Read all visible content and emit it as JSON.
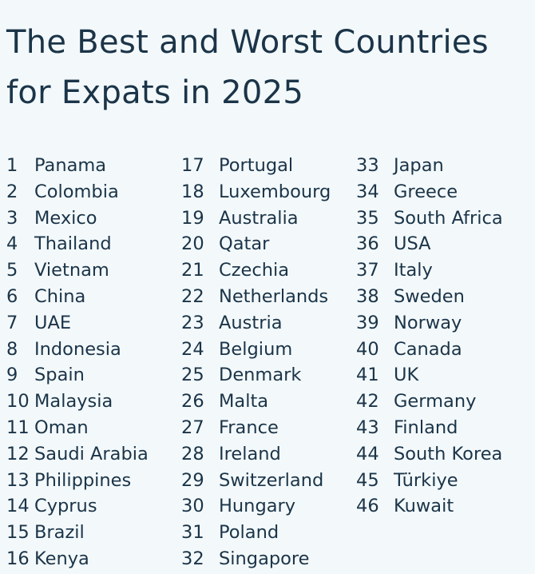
{
  "title": {
    "line1": "The Best and Worst Countries",
    "line2": "for Expats in 2025"
  },
  "columns": [
    [
      {
        "rank": "1",
        "country": "Panama"
      },
      {
        "rank": "2",
        "country": "Colombia"
      },
      {
        "rank": "3",
        "country": "Mexico"
      },
      {
        "rank": "4",
        "country": "Thailand"
      },
      {
        "rank": "5",
        "country": "Vietnam"
      },
      {
        "rank": "6",
        "country": "China"
      },
      {
        "rank": "7",
        "country": "UAE"
      },
      {
        "rank": "8",
        "country": "Indonesia"
      },
      {
        "rank": "9",
        "country": "Spain"
      },
      {
        "rank": "10",
        "country": "Malaysia"
      },
      {
        "rank": "11",
        "country": "Oman"
      },
      {
        "rank": "12",
        "country": "Saudi Arabia"
      },
      {
        "rank": "13",
        "country": "Philippines"
      },
      {
        "rank": "14",
        "country": "Cyprus"
      },
      {
        "rank": "15",
        "country": "Brazil"
      },
      {
        "rank": "16",
        "country": "Kenya"
      }
    ],
    [
      {
        "rank": "17",
        "country": "Portugal"
      },
      {
        "rank": "18",
        "country": "Luxembourg"
      },
      {
        "rank": "19",
        "country": "Australia"
      },
      {
        "rank": "20",
        "country": "Qatar"
      },
      {
        "rank": "21",
        "country": "Czechia"
      },
      {
        "rank": "22",
        "country": "Netherlands"
      },
      {
        "rank": "23",
        "country": "Austria"
      },
      {
        "rank": "24",
        "country": "Belgium"
      },
      {
        "rank": "25",
        "country": "Denmark"
      },
      {
        "rank": "26",
        "country": "Malta"
      },
      {
        "rank": "27",
        "country": "France"
      },
      {
        "rank": "28",
        "country": "Ireland"
      },
      {
        "rank": "29",
        "country": "Switzerland"
      },
      {
        "rank": "30",
        "country": "Hungary"
      },
      {
        "rank": "31",
        "country": "Poland"
      },
      {
        "rank": "32",
        "country": "Singapore"
      }
    ],
    [
      {
        "rank": "33",
        "country": "Japan"
      },
      {
        "rank": "34",
        "country": "Greece"
      },
      {
        "rank": "35",
        "country": "South Africa"
      },
      {
        "rank": "36",
        "country": "USA"
      },
      {
        "rank": "37",
        "country": "Italy"
      },
      {
        "rank": "38",
        "country": "Sweden"
      },
      {
        "rank": "39",
        "country": "Norway"
      },
      {
        "rank": "40",
        "country": "Canada"
      },
      {
        "rank": "41",
        "country": "UK"
      },
      {
        "rank": "42",
        "country": "Germany"
      },
      {
        "rank": "43",
        "country": "Finland"
      },
      {
        "rank": "44",
        "country": "South Korea"
      },
      {
        "rank": "45",
        "country": "Türkiye"
      },
      {
        "rank": "46",
        "country": "Kuwait"
      }
    ]
  ],
  "colors": {
    "background": "#f3f9fb",
    "text": "#1b3448"
  }
}
